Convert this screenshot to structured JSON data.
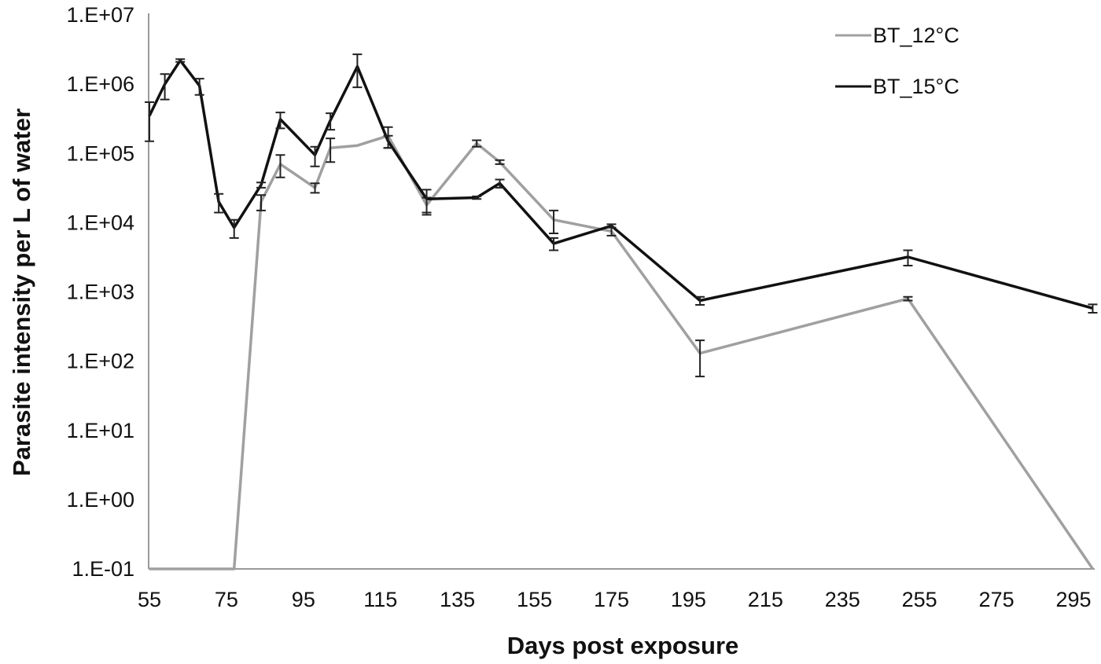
{
  "chart_data": {
    "type": "line",
    "title": "",
    "xlabel": "Days post exposure",
    "ylabel": "Parasite intensity per L of water",
    "yscale": "log",
    "ylim": [
      0.1,
      10000000
    ],
    "xlim": [
      55,
      300
    ],
    "y_tick_labels": [
      "1.E+07",
      "1.E+06",
      "1.E+05",
      "1.E+04",
      "1.E+03",
      "1.E+02",
      "1.E+01",
      "1.E+00",
      "1.E-01"
    ],
    "x_tick_labels": [
      "55",
      "75",
      "95",
      "115",
      "135",
      "155",
      "175",
      "195",
      "215",
      "235",
      "255",
      "275",
      "295"
    ],
    "grid": false,
    "legend_position": "top-right",
    "series": [
      {
        "name": "BT_12°C",
        "color": "#a0a0a0",
        "x": [
          55,
          77,
          84,
          89,
          98,
          102,
          109,
          117,
          127,
          140,
          146,
          160,
          175,
          198,
          252,
          300
        ],
        "values": [
          0.1,
          0.1,
          20000,
          70000,
          32000,
          120000,
          130000,
          180000,
          18000,
          140000,
          75000,
          11000,
          7500,
          130,
          800,
          0.1
        ],
        "error": [
          0,
          0,
          5000,
          25000,
          5000,
          45000,
          0,
          60000,
          5000,
          15000,
          5000,
          4000,
          1000,
          70,
          50,
          0
        ]
      },
      {
        "name": "BT_15°C",
        "color": "#111111",
        "x": [
          55,
          59,
          63,
          68,
          73,
          77,
          84,
          89,
          98,
          102,
          109,
          117,
          127,
          140,
          146,
          160,
          175,
          198,
          252,
          300
        ],
        "values": [
          350000,
          1000000,
          2200000,
          950000,
          20000,
          8500,
          35000,
          310000,
          95000,
          300000,
          1800000,
          150000,
          22000,
          23000,
          37000,
          5000,
          9000,
          750,
          3200,
          580
        ],
        "error": [
          200000,
          400000,
          100000,
          250000,
          6000,
          2500,
          3000,
          80000,
          30000,
          80000,
          900000,
          30000,
          8000,
          1000,
          5000,
          1000,
          500,
          100,
          800,
          80
        ]
      }
    ]
  },
  "legend": {
    "items": [
      {
        "label": "BT_12°C",
        "color": "#a0a0a0"
      },
      {
        "label": "BT_15°C",
        "color": "#111111"
      }
    ]
  }
}
